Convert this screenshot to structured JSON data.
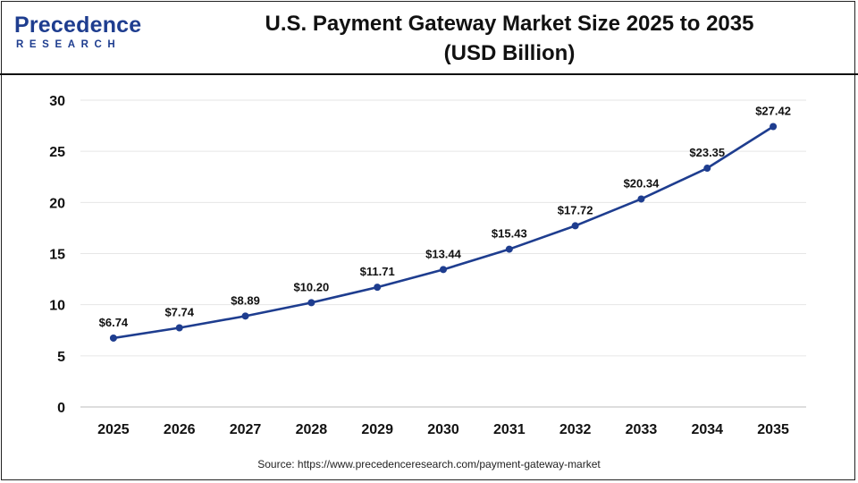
{
  "header": {
    "logo_word": "Precedence",
    "logo_sub": "RESEARCH",
    "title_line1": "U.S. Payment Gateway Market Size 2025 to 2035",
    "title_line2": "(USD Billion)"
  },
  "source": "Source: https://www.precedenceresearch.com/payment-gateway-market",
  "colors": {
    "brand": "#1e3d8f",
    "line": "#1e3d8f",
    "grid": "#e6e6e6"
  },
  "chart_data": {
    "type": "line",
    "categories": [
      "2025",
      "2026",
      "2027",
      "2028",
      "2029",
      "2030",
      "2031",
      "2032",
      "2033",
      "2034",
      "2035"
    ],
    "series": [
      {
        "values": [
          6.74,
          7.74,
          8.89,
          10.2,
          11.71,
          13.44,
          15.43,
          17.72,
          20.34,
          23.35,
          27.42
        ]
      }
    ],
    "data_labels": [
      "$6.74",
      "$7.74",
      "$8.89",
      "$10.20",
      "$11.71",
      "$13.44",
      "$15.43",
      "$17.72",
      "$20.34",
      "$23.35",
      "$27.42"
    ],
    "ylim": [
      0,
      30
    ],
    "yticks": [
      0,
      5,
      10,
      15,
      20,
      25,
      30
    ],
    "grid": true,
    "legend": "none"
  }
}
